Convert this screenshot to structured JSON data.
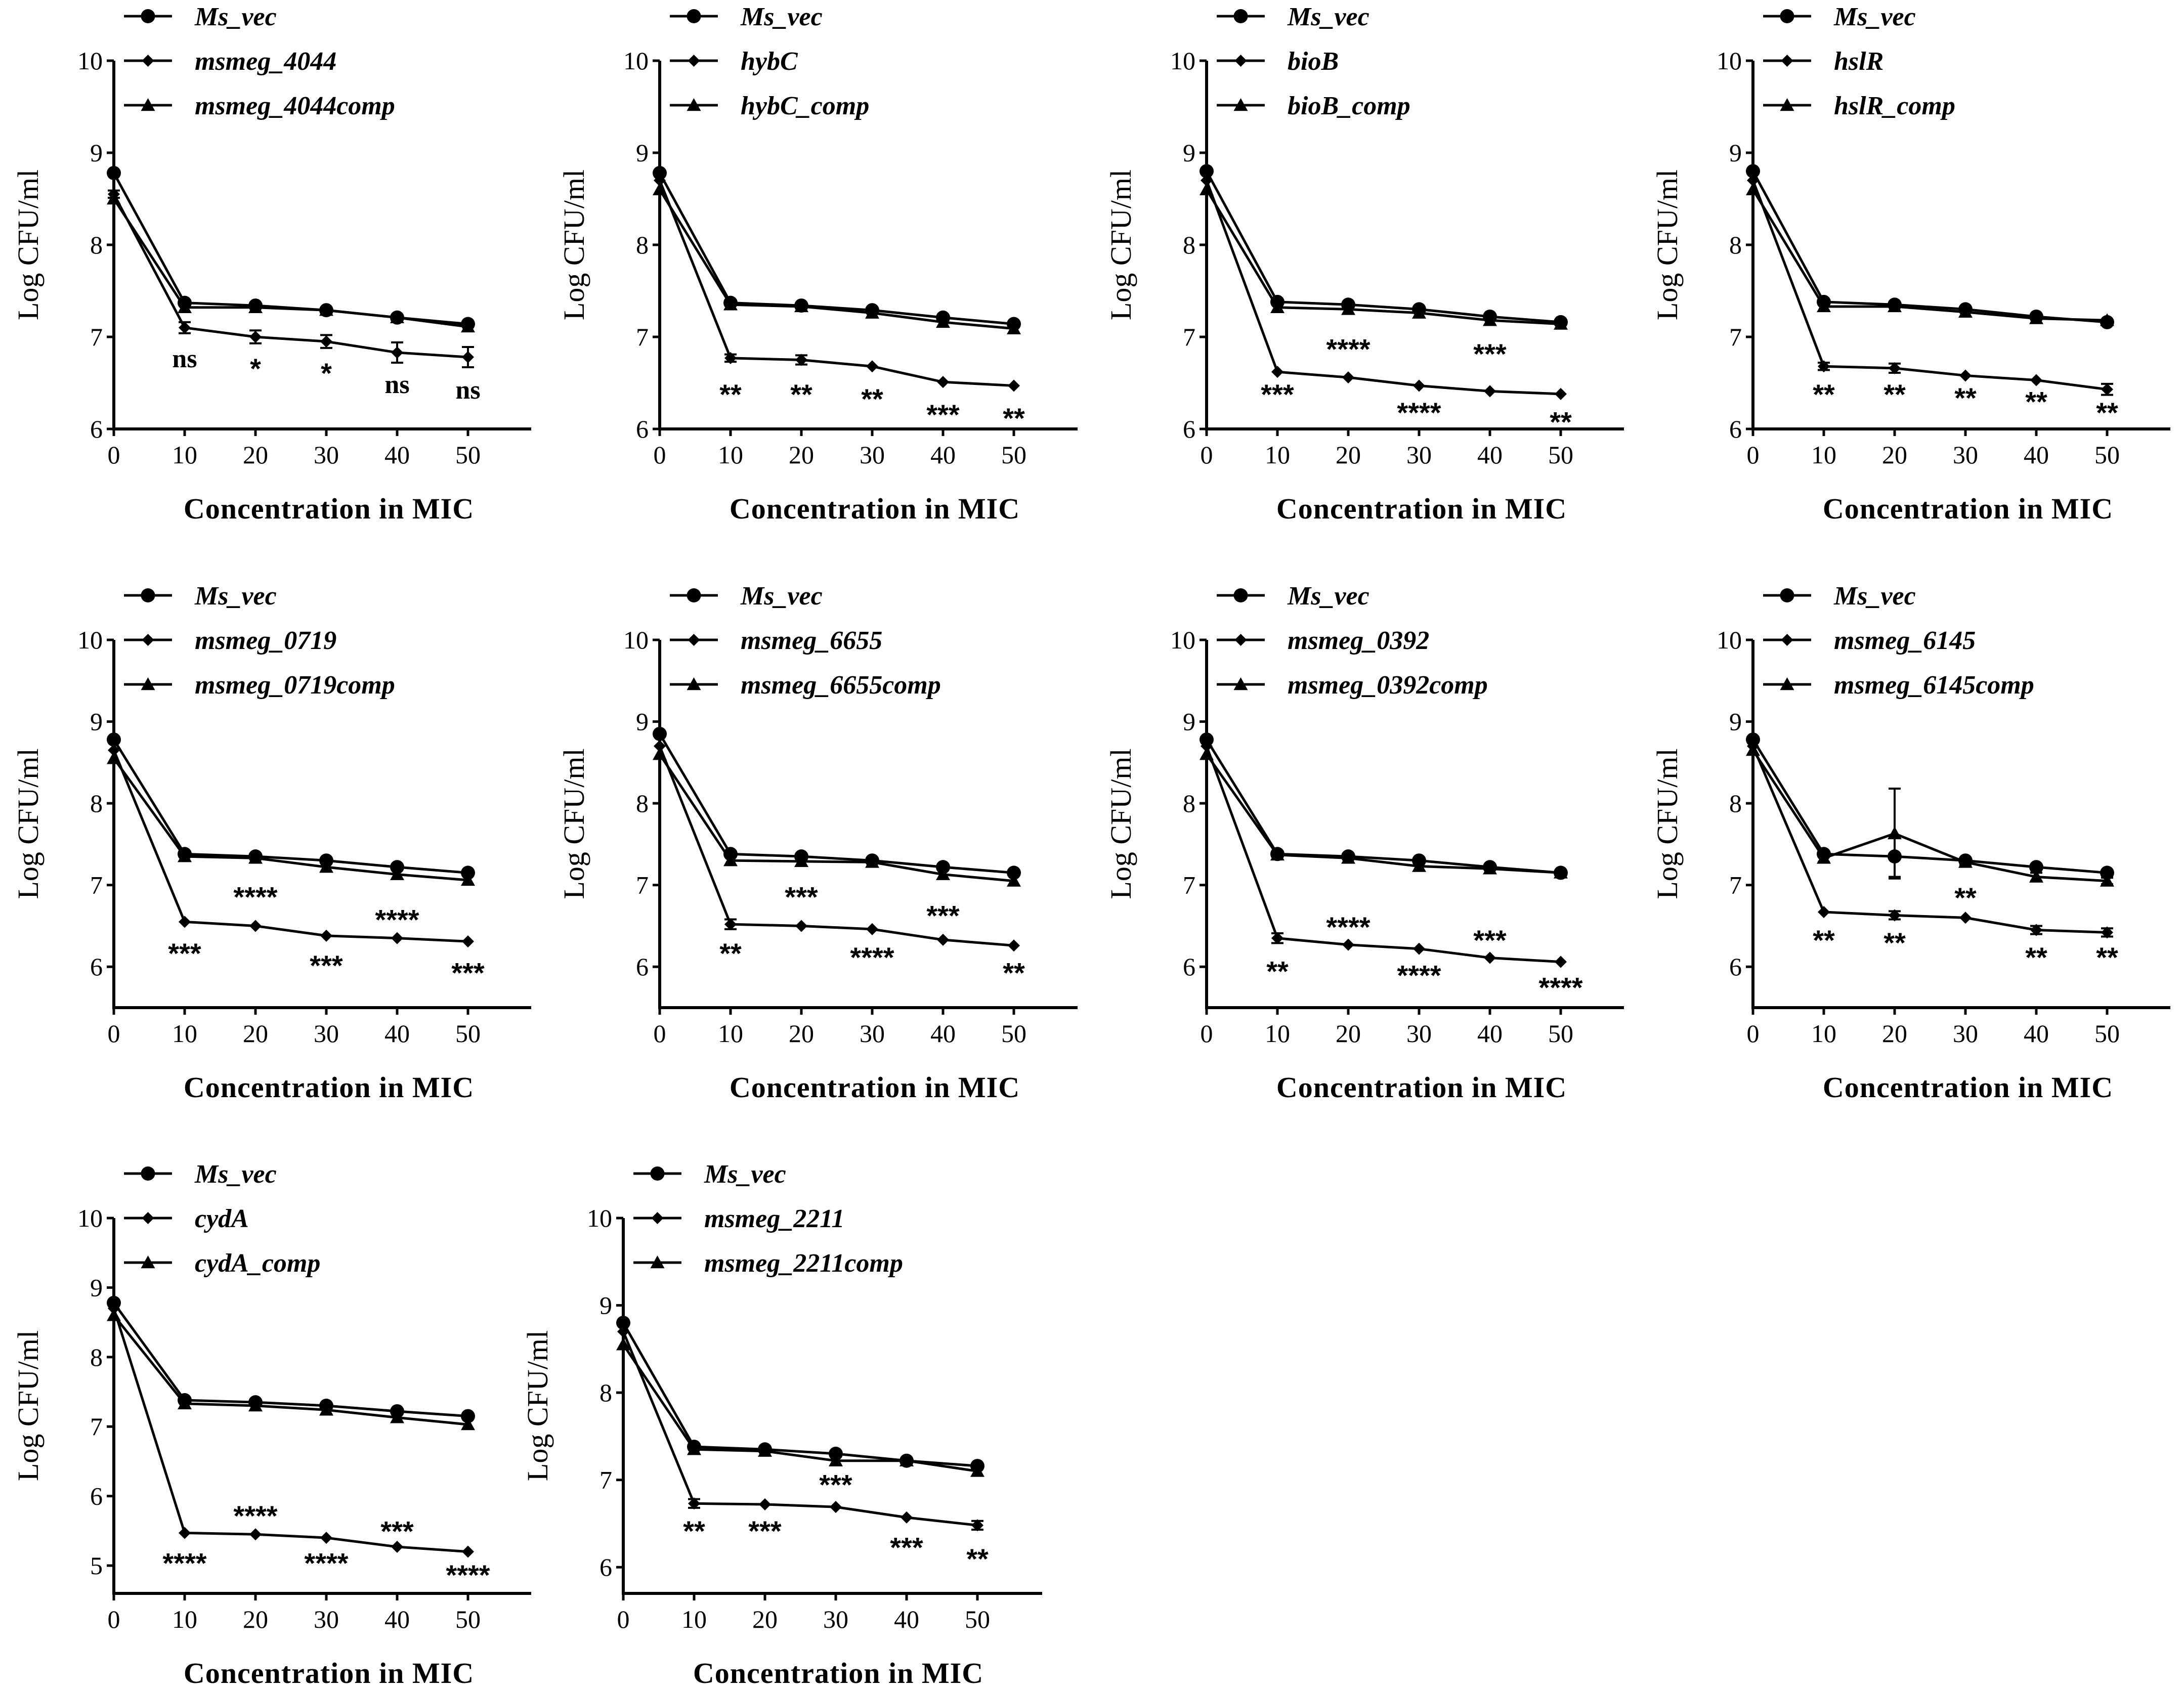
{
  "figure_title": "",
  "chart_data": [
    {
      "type": "line",
      "xlabel": "Concentration in MIC",
      "ylabel": "Log CFU/ml",
      "ylim": [
        6,
        10
      ],
      "yticks": [
        6,
        7,
        8,
        9,
        10
      ],
      "xlim": [
        0,
        60
      ],
      "xticks": [
        0,
        10,
        20,
        30,
        40,
        50
      ],
      "legend_position": "top-left",
      "x": [
        0,
        10,
        20,
        30,
        40,
        50
      ],
      "series": [
        {
          "name": "Ms_vec",
          "marker": "circle",
          "values": [
            8.78,
            7.37,
            7.34,
            7.29,
            7.21,
            7.14
          ]
        },
        {
          "name": "msmeg_4044",
          "marker": "diamond",
          "values": [
            8.55,
            7.1,
            7.0,
            6.95,
            6.83,
            6.78
          ],
          "errors": [
            0.04,
            0.06,
            0.07,
            0.07,
            0.11,
            0.11
          ]
        },
        {
          "name": "msmeg_4044comp",
          "marker": "triangle",
          "values": [
            8.5,
            7.32,
            7.32,
            7.29,
            7.21,
            7.11
          ]
        }
      ],
      "significance": [
        {
          "x": 10,
          "label": "ns",
          "y": 6.78
        },
        {
          "x": 20,
          "label": "*",
          "y": 6.66
        },
        {
          "x": 30,
          "label": "*",
          "y": 6.61
        },
        {
          "x": 40,
          "label": "ns",
          "y": 6.5
        },
        {
          "x": 50,
          "label": "ns",
          "y": 6.44
        }
      ]
    },
    {
      "type": "line",
      "xlabel": "Concentration in MIC",
      "ylabel": "Log CFU/ml",
      "ylim": [
        6,
        10
      ],
      "yticks": [
        6,
        7,
        8,
        9,
        10
      ],
      "xlim": [
        0,
        60
      ],
      "xticks": [
        0,
        10,
        20,
        30,
        40,
        50
      ],
      "legend_position": "top-left",
      "x": [
        0,
        10,
        20,
        30,
        40,
        50
      ],
      "series": [
        {
          "name": "Ms_vec",
          "marker": "circle",
          "values": [
            8.78,
            7.37,
            7.34,
            7.29,
            7.21,
            7.14
          ]
        },
        {
          "name": "hybC",
          "marker": "diamond",
          "values": [
            8.7,
            6.77,
            6.75,
            6.68,
            6.51,
            6.47
          ],
          "errors": [
            0.03,
            0.04,
            0.05,
            0.03,
            0.02,
            0.02
          ]
        },
        {
          "name": "hybC_comp",
          "marker": "triangle",
          "values": [
            8.6,
            7.35,
            7.33,
            7.26,
            7.16,
            7.09
          ]
        }
      ],
      "significance": [
        {
          "x": 10,
          "label": "**",
          "y": 6.38
        },
        {
          "x": 20,
          "label": "**",
          "y": 6.38
        },
        {
          "x": 30,
          "label": "**",
          "y": 6.33
        },
        {
          "x": 40,
          "label": "***",
          "y": 6.16
        },
        {
          "x": 50,
          "label": "**",
          "y": 6.12
        }
      ]
    },
    {
      "type": "line",
      "xlabel": "Concentration in MIC",
      "ylabel": "Log CFU/ml",
      "ylim": [
        6,
        10
      ],
      "yticks": [
        6,
        7,
        8,
        9,
        10
      ],
      "xlim": [
        0,
        60
      ],
      "xticks": [
        0,
        10,
        20,
        30,
        40,
        50
      ],
      "legend_position": "top-left",
      "x": [
        0,
        10,
        20,
        30,
        40,
        50
      ],
      "series": [
        {
          "name": "Ms_vec",
          "marker": "circle",
          "values": [
            8.8,
            7.38,
            7.35,
            7.3,
            7.22,
            7.16
          ]
        },
        {
          "name": "bioB",
          "marker": "diamond",
          "values": [
            8.7,
            6.62,
            6.56,
            6.47,
            6.41,
            6.38
          ],
          "errors": [
            0.03,
            0.02,
            0.02,
            0.02,
            0.02,
            0.02
          ]
        },
        {
          "name": "bioB_comp",
          "marker": "triangle",
          "values": [
            8.6,
            7.32,
            7.3,
            7.26,
            7.18,
            7.14
          ]
        }
      ],
      "significance": [
        {
          "x": 10,
          "label": "***",
          "y": 6.38
        },
        {
          "x": 20,
          "label": "****",
          "y": 6.87
        },
        {
          "x": 30,
          "label": "****",
          "y": 6.18
        },
        {
          "x": 40,
          "label": "***",
          "y": 6.82
        },
        {
          "x": 50,
          "label": "**",
          "y": 6.08
        }
      ]
    },
    {
      "type": "line",
      "xlabel": "Concentration in MIC",
      "ylabel": "Log CFU/ml",
      "ylim": [
        6,
        10
      ],
      "yticks": [
        6,
        7,
        8,
        9,
        10
      ],
      "xlim": [
        0,
        60
      ],
      "xticks": [
        0,
        10,
        20,
        30,
        40,
        50
      ],
      "legend_position": "top-left",
      "x": [
        0,
        10,
        20,
        30,
        40,
        50
      ],
      "series": [
        {
          "name": "Ms_vec",
          "marker": "circle",
          "values": [
            8.8,
            7.38,
            7.35,
            7.3,
            7.22,
            7.16
          ]
        },
        {
          "name": "hslR",
          "marker": "diamond",
          "values": [
            8.7,
            6.68,
            6.66,
            6.58,
            6.53,
            6.43
          ],
          "errors": [
            0.03,
            0.04,
            0.05,
            0.03,
            0.03,
            0.06
          ]
        },
        {
          "name": "hslR_comp",
          "marker": "triangle",
          "values": [
            8.6,
            7.33,
            7.33,
            7.27,
            7.2,
            7.18
          ]
        }
      ],
      "significance": [
        {
          "x": 10,
          "label": "**",
          "y": 6.38
        },
        {
          "x": 20,
          "label": "**",
          "y": 6.38
        },
        {
          "x": 30,
          "label": "**",
          "y": 6.34
        },
        {
          "x": 40,
          "label": "**",
          "y": 6.3
        },
        {
          "x": 50,
          "label": "**",
          "y": 6.18
        }
      ]
    },
    {
      "type": "line",
      "xlabel": "Concentration in MIC",
      "ylabel": "Log CFU/ml",
      "ylim": [
        5.5,
        10
      ],
      "yticks": [
        6,
        7,
        8,
        9,
        10
      ],
      "xlim": [
        0,
        60
      ],
      "xticks": [
        0,
        10,
        20,
        30,
        40,
        50
      ],
      "legend_position": "top-left",
      "x": [
        0,
        10,
        20,
        30,
        40,
        50
      ],
      "series": [
        {
          "name": "Ms_vec",
          "marker": "circle",
          "values": [
            8.78,
            7.38,
            7.35,
            7.3,
            7.22,
            7.15
          ]
        },
        {
          "name": "msmeg_0719",
          "marker": "diamond",
          "values": [
            8.65,
            6.55,
            6.5,
            6.38,
            6.35,
            6.31
          ],
          "errors": [
            0.03,
            0.02,
            0.02,
            0.02,
            0.02,
            0.02
          ]
        },
        {
          "name": "msmeg_0719comp",
          "marker": "triangle",
          "values": [
            8.55,
            7.35,
            7.33,
            7.22,
            7.13,
            7.06
          ]
        }
      ],
      "significance": [
        {
          "x": 10,
          "label": "***",
          "y": 6.17
        },
        {
          "x": 20,
          "label": "****",
          "y": 6.86
        },
        {
          "x": 30,
          "label": "***",
          "y": 6.02
        },
        {
          "x": 40,
          "label": "****",
          "y": 6.58
        },
        {
          "x": 50,
          "label": "***",
          "y": 5.93
        }
      ]
    },
    {
      "type": "line",
      "xlabel": "Concentration in MIC",
      "ylabel": "Log CFU/ml",
      "ylim": [
        5.5,
        10
      ],
      "yticks": [
        6,
        7,
        8,
        9,
        10
      ],
      "xlim": [
        0,
        60
      ],
      "xticks": [
        0,
        10,
        20,
        30,
        40,
        50
      ],
      "legend_position": "top-left",
      "x": [
        0,
        10,
        20,
        30,
        40,
        50
      ],
      "series": [
        {
          "name": "Ms_vec",
          "marker": "circle",
          "values": [
            8.85,
            7.38,
            7.35,
            7.3,
            7.22,
            7.15
          ]
        },
        {
          "name": "msmeg_6655",
          "marker": "diamond",
          "values": [
            8.7,
            6.52,
            6.5,
            6.46,
            6.33,
            6.26
          ],
          "errors": [
            0.03,
            0.06,
            0.02,
            0.02,
            0.02,
            0.02
          ]
        },
        {
          "name": "msmeg_6655comp",
          "marker": "triangle",
          "values": [
            8.6,
            7.3,
            7.29,
            7.28,
            7.13,
            7.05
          ]
        }
      ],
      "significance": [
        {
          "x": 10,
          "label": "**",
          "y": 6.17
        },
        {
          "x": 20,
          "label": "***",
          "y": 6.86
        },
        {
          "x": 30,
          "label": "****",
          "y": 6.12
        },
        {
          "x": 40,
          "label": "***",
          "y": 6.63
        },
        {
          "x": 50,
          "label": "**",
          "y": 5.93
        }
      ]
    },
    {
      "type": "line",
      "xlabel": "Concentration in MIC",
      "ylabel": "Log CFU/ml",
      "ylim": [
        5.5,
        10
      ],
      "yticks": [
        6,
        7,
        8,
        9,
        10
      ],
      "xlim": [
        0,
        60
      ],
      "xticks": [
        0,
        10,
        20,
        30,
        40,
        50
      ],
      "legend_position": "top-left",
      "x": [
        0,
        10,
        20,
        30,
        40,
        50
      ],
      "series": [
        {
          "name": "Ms_vec",
          "marker": "circle",
          "values": [
            8.78,
            7.38,
            7.35,
            7.3,
            7.22,
            7.15
          ]
        },
        {
          "name": "msmeg_0392",
          "marker": "diamond",
          "values": [
            8.7,
            6.35,
            6.27,
            6.22,
            6.11,
            6.06
          ],
          "errors": [
            0.03,
            0.06,
            0.02,
            0.02,
            0.02,
            0.02
          ]
        },
        {
          "name": "msmeg_0392comp",
          "marker": "triangle",
          "values": [
            8.6,
            7.37,
            7.33,
            7.23,
            7.2,
            7.15
          ]
        }
      ],
      "significance": [
        {
          "x": 10,
          "label": "**",
          "y": 5.95
        },
        {
          "x": 20,
          "label": "****",
          "y": 6.49
        },
        {
          "x": 30,
          "label": "****",
          "y": 5.9
        },
        {
          "x": 40,
          "label": "***",
          "y": 6.33
        },
        {
          "x": 50,
          "label": "****",
          "y": 5.75
        }
      ]
    },
    {
      "type": "line",
      "xlabel": "Concentration in MIC",
      "ylabel": "Log CFU/ml",
      "ylim": [
        5.5,
        10
      ],
      "yticks": [
        6,
        7,
        8,
        9,
        10
      ],
      "xlim": [
        0,
        60
      ],
      "xticks": [
        0,
        10,
        20,
        30,
        40,
        50
      ],
      "legend_position": "top-left",
      "x": [
        0,
        10,
        20,
        30,
        40,
        50
      ],
      "series": [
        {
          "name": "Ms_vec",
          "marker": "circle",
          "values": [
            8.78,
            7.38,
            7.35,
            7.3,
            7.22,
            7.15
          ],
          "errors": [
            0.03,
            0.03,
            0.25,
            0.03,
            0.03,
            0.03
          ]
        },
        {
          "name": "msmeg_6145",
          "marker": "diamond",
          "values": [
            8.7,
            6.67,
            6.63,
            6.6,
            6.45,
            6.42
          ],
          "errors": [
            0.03,
            0.03,
            0.05,
            0.03,
            0.05,
            0.05
          ]
        },
        {
          "name": "msmeg_6145comp",
          "marker": "triangle",
          "values": [
            8.65,
            7.33,
            7.63,
            7.28,
            7.1,
            7.05
          ],
          "errors": [
            0.03,
            0.05,
            0.55,
            0.04,
            0.05,
            0.04
          ]
        }
      ],
      "significance": [
        {
          "x": 10,
          "label": "**",
          "y": 6.33
        },
        {
          "x": 20,
          "label": "**",
          "y": 6.3
        },
        {
          "x": 30,
          "label": "**",
          "y": 6.85
        },
        {
          "x": 40,
          "label": "**",
          "y": 6.12
        },
        {
          "x": 50,
          "label": "**",
          "y": 6.12
        }
      ]
    },
    {
      "type": "line",
      "xlabel": "Concentration in MIC",
      "ylabel": "Log CFU/ml",
      "ylim": [
        4.6,
        10
      ],
      "yticks": [
        5,
        6,
        7,
        8,
        9,
        10
      ],
      "xlim": [
        0,
        60
      ],
      "xticks": [
        0,
        10,
        20,
        30,
        40,
        50
      ],
      "legend_position": "top-left",
      "x": [
        0,
        10,
        20,
        30,
        40,
        50
      ],
      "series": [
        {
          "name": "Ms_vec",
          "marker": "circle",
          "values": [
            8.78,
            7.38,
            7.35,
            7.3,
            7.22,
            7.15
          ]
        },
        {
          "name": "cydA",
          "marker": "diamond",
          "values": [
            8.7,
            5.47,
            5.45,
            5.4,
            5.27,
            5.2
          ],
          "errors": [
            0.03,
            0.02,
            0.02,
            0.02,
            0.02,
            0.02
          ]
        },
        {
          "name": "cydA_comp",
          "marker": "triangle",
          "values": [
            8.6,
            7.33,
            7.3,
            7.24,
            7.13,
            7.03
          ]
        }
      ],
      "significance": [
        {
          "x": 10,
          "label": "****",
          "y": 5.04
        },
        {
          "x": 20,
          "label": "****",
          "y": 5.72
        },
        {
          "x": 30,
          "label": "****",
          "y": 5.04
        },
        {
          "x": 40,
          "label": "***",
          "y": 5.5
        },
        {
          "x": 50,
          "label": "****",
          "y": 4.87
        }
      ]
    },
    {
      "type": "line",
      "xlabel": "Concentration in MIC",
      "ylabel": "Log CFU/ml",
      "ylim": [
        5.7,
        10
      ],
      "yticks": [
        6,
        7,
        8,
        9,
        10
      ],
      "xlim": [
        0,
        60
      ],
      "xticks": [
        0,
        10,
        20,
        30,
        40,
        50
      ],
      "legend_position": "top-left",
      "x": [
        0,
        10,
        20,
        30,
        40,
        50
      ],
      "series": [
        {
          "name": "Ms_vec",
          "marker": "circle",
          "values": [
            8.8,
            7.38,
            7.35,
            7.3,
            7.22,
            7.16
          ]
        },
        {
          "name": "msmeg_2211",
          "marker": "diamond",
          "values": [
            8.7,
            6.73,
            6.72,
            6.69,
            6.57,
            6.48
          ],
          "errors": [
            0.03,
            0.05,
            0.02,
            0.02,
            0.02,
            0.05
          ]
        },
        {
          "name": "msmeg_2211comp",
          "marker": "triangle",
          "values": [
            8.55,
            7.35,
            7.33,
            7.22,
            7.22,
            7.1
          ]
        }
      ],
      "significance": [
        {
          "x": 10,
          "label": "**",
          "y": 6.42
        },
        {
          "x": 20,
          "label": "***",
          "y": 6.42
        },
        {
          "x": 30,
          "label": "***",
          "y": 6.95
        },
        {
          "x": 40,
          "label": "***",
          "y": 6.23
        },
        {
          "x": 50,
          "label": "**",
          "y": 6.1
        }
      ]
    }
  ]
}
